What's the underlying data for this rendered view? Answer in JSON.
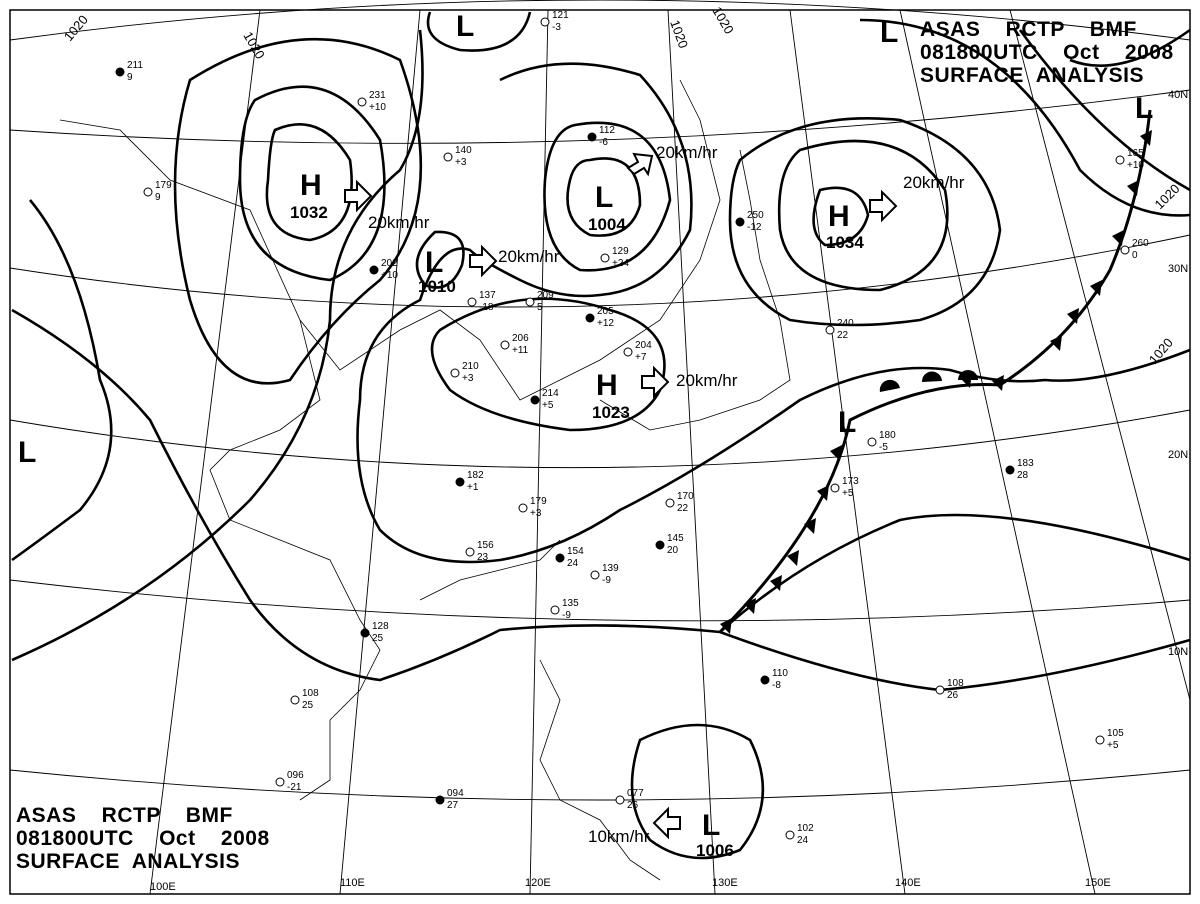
{
  "header": {
    "line1": "ASAS    RCTP    BMF",
    "line2": "081800UTC    Oct    2008",
    "line3": "SURFACE  ANALYSIS"
  },
  "grid_labels": {
    "lon": [
      "100E",
      "110E",
      "120E",
      "130E",
      "140E",
      "150E"
    ],
    "lat": [
      "40N",
      "30N",
      "20N",
      "10N"
    ]
  },
  "pressure_centers": [
    {
      "type": "H",
      "value": "1032"
    },
    {
      "type": "L",
      "value": "1010"
    },
    {
      "type": "L",
      "value": "1004"
    },
    {
      "type": "H",
      "value": "1034"
    },
    {
      "type": "H",
      "value": "1023"
    },
    {
      "type": "L",
      "value": "1006"
    },
    {
      "type": "L",
      "value": ""
    },
    {
      "type": "L",
      "value": ""
    },
    {
      "type": "L",
      "value": ""
    },
    {
      "type": "L",
      "value": ""
    },
    {
      "type": "L",
      "value": ""
    }
  ],
  "movement": [
    "20km/hr",
    "20km/hr",
    "20km/hr",
    "20km/hr",
    "20km/hr",
    "10km/hr"
  ],
  "isobar_labels": [
    "1020",
    "1020",
    "1020",
    "1020",
    "1020",
    "1020"
  ],
  "stations": [
    {
      "p": "211",
      "t": "9"
    },
    {
      "p": "231",
      "t": "+10"
    },
    {
      "p": "140",
      "t": "+3"
    },
    {
      "p": "112",
      "t": "-6"
    },
    {
      "p": "121",
      "t": "-3"
    },
    {
      "p": "179",
      "t": "9"
    },
    {
      "p": "202",
      "t": "+10"
    },
    {
      "p": "137",
      "t": "-18"
    },
    {
      "p": "209",
      "t": "5"
    },
    {
      "p": "205",
      "t": "+12"
    },
    {
      "p": "206",
      "t": "+11"
    },
    {
      "p": "210",
      "t": "+3"
    },
    {
      "p": "214",
      "t": "+5"
    },
    {
      "p": "204",
      "t": "+7"
    },
    {
      "p": "129",
      "t": "+24"
    },
    {
      "p": "250",
      "t": "-12"
    },
    {
      "p": "240",
      "t": "22"
    },
    {
      "p": "180",
      "t": "-5"
    },
    {
      "p": "182",
      "t": "+1"
    },
    {
      "p": "179",
      "t": "+3"
    },
    {
      "p": "156",
      "t": "23"
    },
    {
      "p": "154",
      "t": "24"
    },
    {
      "p": "139",
      "t": "-9"
    },
    {
      "p": "135",
      "t": "-9"
    },
    {
      "p": "128",
      "t": "25"
    },
    {
      "p": "108",
      "t": "25"
    },
    {
      "p": "096",
      "t": "-21"
    },
    {
      "p": "094",
      "t": "27"
    },
    {
      "p": "077",
      "t": "26"
    },
    {
      "p": "102",
      "t": "24"
    },
    {
      "p": "110",
      "t": "-8"
    },
    {
      "p": "108",
      "t": "26"
    },
    {
      "p": "105",
      "t": "+5"
    },
    {
      "p": "183",
      "t": "28"
    },
    {
      "p": "173",
      "t": "+5"
    },
    {
      "p": "170",
      "t": "22"
    },
    {
      "p": "145",
      "t": "20"
    },
    {
      "p": "165",
      "t": "+10"
    },
    {
      "p": "260",
      "t": "0"
    }
  ],
  "colors": {
    "ink": "#000000",
    "background": "#ffffff"
  }
}
